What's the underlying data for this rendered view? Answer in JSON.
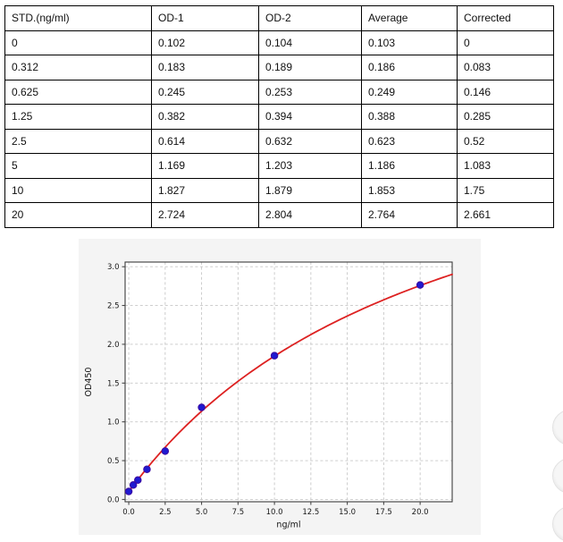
{
  "table": {
    "headers": [
      "STD.(ng/ml)",
      "OD-1",
      "OD-2",
      "Average",
      "Corrected"
    ],
    "rows": [
      [
        "0",
        "0.102",
        "0.104",
        "0.103",
        "0"
      ],
      [
        "0.312",
        "0.183",
        "0.189",
        "0.186",
        "0.083"
      ],
      [
        "0.625",
        "0.245",
        "0.253",
        "0.249",
        "0.146"
      ],
      [
        "1.25",
        "0.382",
        "0.394",
        "0.388",
        "0.285"
      ],
      [
        "2.5",
        "0.614",
        "0.632",
        "0.623",
        "0.52"
      ],
      [
        "5",
        "1.169",
        "1.203",
        "1.186",
        "1.083"
      ],
      [
        "10",
        "1.827",
        "1.879",
        "1.853",
        "1.75"
      ],
      [
        "20",
        "2.724",
        "2.804",
        "2.764",
        "2.661"
      ]
    ]
  },
  "chart_data": {
    "type": "scatter",
    "title": "",
    "xlabel": "ng/ml",
    "ylabel": "OD450",
    "xlim": [
      -0.25,
      22.2
    ],
    "ylim": [
      -0.03,
      3.06
    ],
    "xticks": [
      0,
      2.5,
      5,
      7.5,
      10,
      12.5,
      15,
      17.5,
      20
    ],
    "xtick_labels": [
      "0.0",
      "2.5",
      "5.0",
      "7.5",
      "10.0",
      "12.5",
      "15.0",
      "17.5",
      "20.0"
    ],
    "yticks": [
      0,
      0.5,
      1,
      1.5,
      2,
      2.5,
      3
    ],
    "ytick_labels": [
      "0.0",
      "0.5",
      "1.0",
      "1.5",
      "2.0",
      "2.5",
      "3.0"
    ],
    "grid": true,
    "grid_style": "dashed",
    "points": [
      {
        "x": 0,
        "y": 0.103
      },
      {
        "x": 0.312,
        "y": 0.186
      },
      {
        "x": 0.625,
        "y": 0.249
      },
      {
        "x": 1.25,
        "y": 0.388
      },
      {
        "x": 2.5,
        "y": 0.623
      },
      {
        "x": 5,
        "y": 1.186
      },
      {
        "x": 10,
        "y": 1.853
      },
      {
        "x": 20,
        "y": 2.764
      }
    ],
    "fit_curve": {
      "model": "y = c + a*x/(b+x)",
      "a": 5.54,
      "b": 21.7,
      "c": 0.1,
      "x_start": 0,
      "x_end": 22.2
    },
    "colors": {
      "curve": "#dd2121",
      "marker_fill": "#1f1ad1",
      "marker_edge": "#3a0ca3",
      "figure_bg": "#f4f4f4",
      "plot_bg": "#ffffff",
      "grid": "#c7c7c7",
      "spine": "#3c3c3c",
      "tick_text": "#1a1a1a"
    }
  }
}
